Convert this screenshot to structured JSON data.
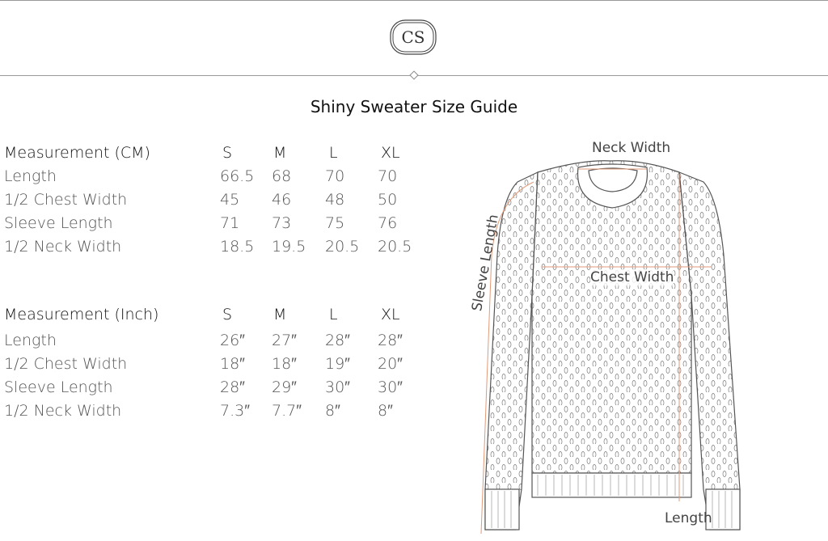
{
  "brand": {
    "logo_text": "CS"
  },
  "title": "Shiny Sweater Size Guide",
  "tables": [
    {
      "header": [
        "Measurement (CM)",
        "S",
        "M",
        "L",
        "XL"
      ],
      "rows": [
        [
          "Length",
          "66.5",
          "68",
          "70",
          "70"
        ],
        [
          "1/2 Chest Width",
          "45",
          "46",
          "48",
          "50"
        ],
        [
          "Sleeve Length",
          "71",
          "73",
          "75",
          "76"
        ],
        [
          "1/2 Neck Width",
          "18.5",
          "19.5",
          "20.5",
          "20.5"
        ]
      ]
    },
    {
      "header": [
        "Measurement (Inch)",
        "S",
        "M",
        "L",
        "XL"
      ],
      "rows": [
        [
          "Length",
          "26″",
          "27″",
          "28″",
          "28″"
        ],
        [
          "1/2 Chest Width",
          "18″",
          "18″",
          "19″",
          "20″"
        ],
        [
          "Sleeve Length",
          "28″",
          "29″",
          "30″",
          "30″"
        ],
        [
          "1/2 Neck Width",
          "7.3″",
          "7.7″",
          "8″",
          "8″"
        ]
      ]
    }
  ],
  "diagram": {
    "labels": {
      "neck": "Neck Width",
      "sleeve": "Sleeve Length",
      "chest": "Chest Width",
      "length": "Length"
    },
    "measure_color": "#e29a78",
    "outline_color": "#555555"
  }
}
